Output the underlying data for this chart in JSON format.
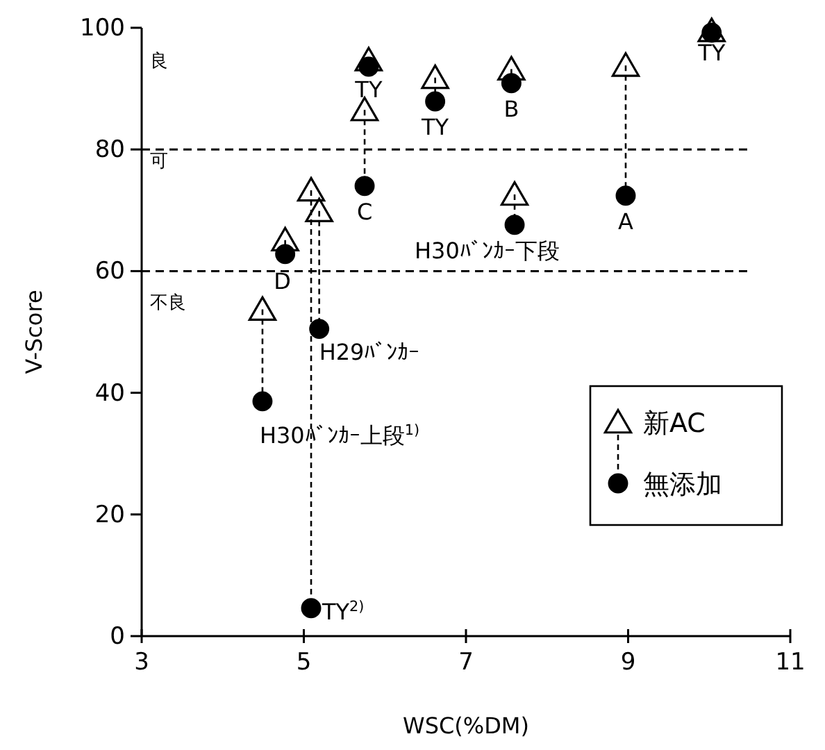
{
  "chart_data": {
    "type": "scatter",
    "xlabel": "WSC(%DM)",
    "ylabel": "V-Score",
    "xlim": [
      3,
      11
    ],
    "xticks": [
      3,
      5,
      7,
      9,
      11
    ],
    "ylim": [
      0,
      100
    ],
    "yticks": [
      0,
      20,
      40,
      60,
      80,
      100
    ],
    "grid": false,
    "legend": "right",
    "series": [
      {
        "name": "新AC",
        "color": "#000000",
        "marker": "triangle",
        "x": [
          5.8,
          5.75,
          6.62,
          4.77,
          5.09,
          5.19,
          4.49,
          7.56,
          7.6,
          8.97,
          10.03
        ],
        "values": [
          94.7,
          86.5,
          91.8,
          65.1,
          73.3,
          69.9,
          53.7,
          93.2,
          72.6,
          93.8,
          99.5
        ]
      },
      {
        "name": "無添加",
        "color": "#000000",
        "marker": "circle",
        "x": [
          5.8,
          5.75,
          6.62,
          4.77,
          5.09,
          5.19,
          4.49,
          7.56,
          7.6,
          8.97,
          10.03
        ],
        "values": [
          93.6,
          74.0,
          87.9,
          62.8,
          4.6,
          50.5,
          38.6,
          90.9,
          67.6,
          72.4,
          99.2
        ]
      }
    ],
    "ref_lines": [
      {
        "axis": "y",
        "value": 80,
        "line_style": "dashed"
      },
      {
        "axis": "y",
        "value": 60,
        "line_style": "dashed"
      }
    ],
    "annotations": [
      {
        "text": "TY",
        "x": 5.8,
        "y": 93.6
      },
      {
        "text": "C",
        "x": 5.75,
        "y": 74.0
      },
      {
        "text": "TY",
        "x": 6.62,
        "y": 87.9
      },
      {
        "text": "D",
        "x": 4.77,
        "y": 62.8
      },
      {
        "text": "TY$^{2)}$",
        "x": 5.09,
        "y": 4.6
      },
      {
        "text": "H29ﾊﾞﾝｶｰ",
        "x": 5.19,
        "y": 50.5
      },
      {
        "text": "H30ﾊﾞﾝｶｰ上段$^{1)}$",
        "x": 4.49,
        "y": 38.6
      },
      {
        "text": "B",
        "x": 7.56,
        "y": 90.9
      },
      {
        "text": "H30ﾊﾞﾝｶｰ下段",
        "x": 7.6,
        "y": 67.6
      },
      {
        "text": "A",
        "x": 8.97,
        "y": 72.4
      },
      {
        "text": "TY",
        "x": 10.03,
        "y": 99.2
      },
      "良",
      "可",
      "不良"
    ]
  }
}
